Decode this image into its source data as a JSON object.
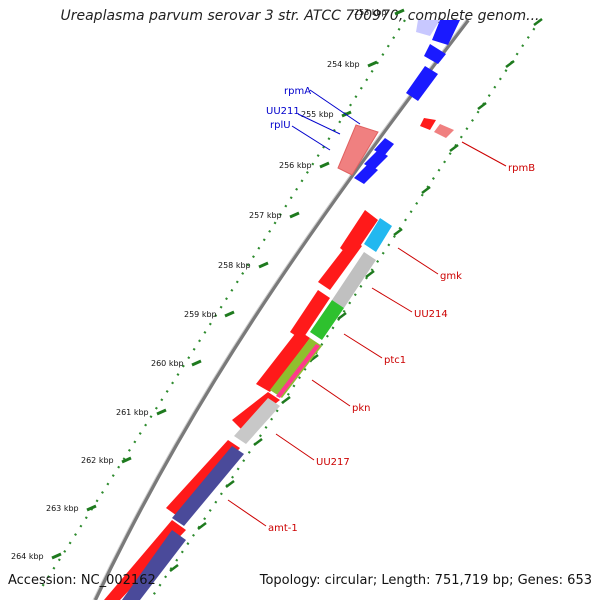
{
  "title": "Ureaplasma parvum serovar 3 str. ATCC 700970, complete genom...",
  "footer": {
    "accession": "Accession: NC_002162",
    "summary": "Topology: circular; Length: 751,719 bp; Genes: 653"
  },
  "colors": {
    "forward_strand": "#ff0000",
    "reverse_strand": "#0000ff",
    "backbone": "#888888",
    "tick": "#228b22",
    "label_forward": "#cc0000",
    "label_reverse": "#0000cc"
  },
  "ticks": [
    {
      "label": "253 kbp"
    },
    {
      "label": "254 kbp"
    },
    {
      "label": "255 kbp"
    },
    {
      "label": "256 kbp"
    },
    {
      "label": "257 kbp"
    },
    {
      "label": "258 kbp"
    },
    {
      "label": "259 kbp"
    },
    {
      "label": "260 kbp"
    },
    {
      "label": "261 kbp"
    },
    {
      "label": "262 kbp"
    },
    {
      "label": "263 kbp"
    },
    {
      "label": "264 kbp"
    }
  ],
  "gene_labels": [
    {
      "name": "rpmA",
      "color": "#0000cc"
    },
    {
      "name": "UU211",
      "color": "#0000cc"
    },
    {
      "name": "rplU",
      "color": "#0000cc"
    },
    {
      "name": "rpmB",
      "color": "#cc0000"
    },
    {
      "name": "gmk",
      "color": "#cc0000"
    },
    {
      "name": "UU214",
      "color": "#cc0000"
    },
    {
      "name": "ptc1",
      "color": "#cc0000"
    },
    {
      "name": "pkn",
      "color": "#cc0000"
    },
    {
      "name": "UU217",
      "color": "#cc0000"
    },
    {
      "name": "amt-1",
      "color": "#cc0000"
    }
  ]
}
